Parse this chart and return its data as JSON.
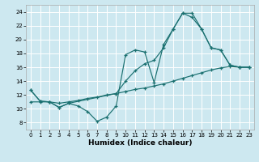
{
  "xlabel": "Humidex (Indice chaleur)",
  "bg_color": "#cde8f0",
  "line_color": "#1a7070",
  "grid_color": "#ffffff",
  "xlim": [
    -0.5,
    23.5
  ],
  "ylim": [
    7,
    25
  ],
  "xticks": [
    0,
    1,
    2,
    3,
    4,
    5,
    6,
    7,
    8,
    9,
    10,
    11,
    12,
    13,
    14,
    15,
    16,
    17,
    18,
    19,
    20,
    21,
    22,
    23
  ],
  "yticks": [
    8,
    10,
    12,
    14,
    16,
    18,
    20,
    22,
    24
  ],
  "line1_zigzag": {
    "x": [
      0,
      1,
      2,
      3,
      4,
      5,
      6,
      7,
      8,
      9,
      10,
      11,
      12,
      13,
      14,
      15,
      16,
      17,
      18,
      19,
      20,
      21,
      22,
      23
    ],
    "y": [
      12.7,
      11.1,
      11.0,
      10.2,
      10.8,
      10.4,
      9.6,
      8.2,
      8.8,
      10.4,
      17.8,
      18.5,
      18.2,
      13.8,
      19.3,
      21.5,
      23.8,
      23.8,
      21.5,
      18.8,
      18.5,
      16.3,
      16.0,
      16.0
    ]
  },
  "line2_straight": {
    "x": [
      0,
      1,
      2,
      3,
      4,
      5,
      6,
      7,
      8,
      9,
      10,
      11,
      12,
      13,
      14,
      15,
      16,
      17,
      18,
      19,
      20,
      21,
      22,
      23
    ],
    "y": [
      11.0,
      11.0,
      11.0,
      10.8,
      11.0,
      11.2,
      11.5,
      11.7,
      12.0,
      12.2,
      12.5,
      12.8,
      13.0,
      13.3,
      13.6,
      14.0,
      14.4,
      14.8,
      15.2,
      15.6,
      15.9,
      16.1,
      16.0,
      16.0
    ]
  },
  "line3_steep": {
    "x": [
      0,
      1,
      2,
      3,
      4,
      9,
      10,
      11,
      12,
      13,
      14,
      15,
      16,
      17,
      18,
      19,
      20,
      21,
      22,
      23
    ],
    "y": [
      12.7,
      11.1,
      11.0,
      10.2,
      10.8,
      12.2,
      14.0,
      15.5,
      16.5,
      17.0,
      18.8,
      21.5,
      23.8,
      23.2,
      21.5,
      18.8,
      18.5,
      16.3,
      16.0,
      16.0
    ]
  }
}
